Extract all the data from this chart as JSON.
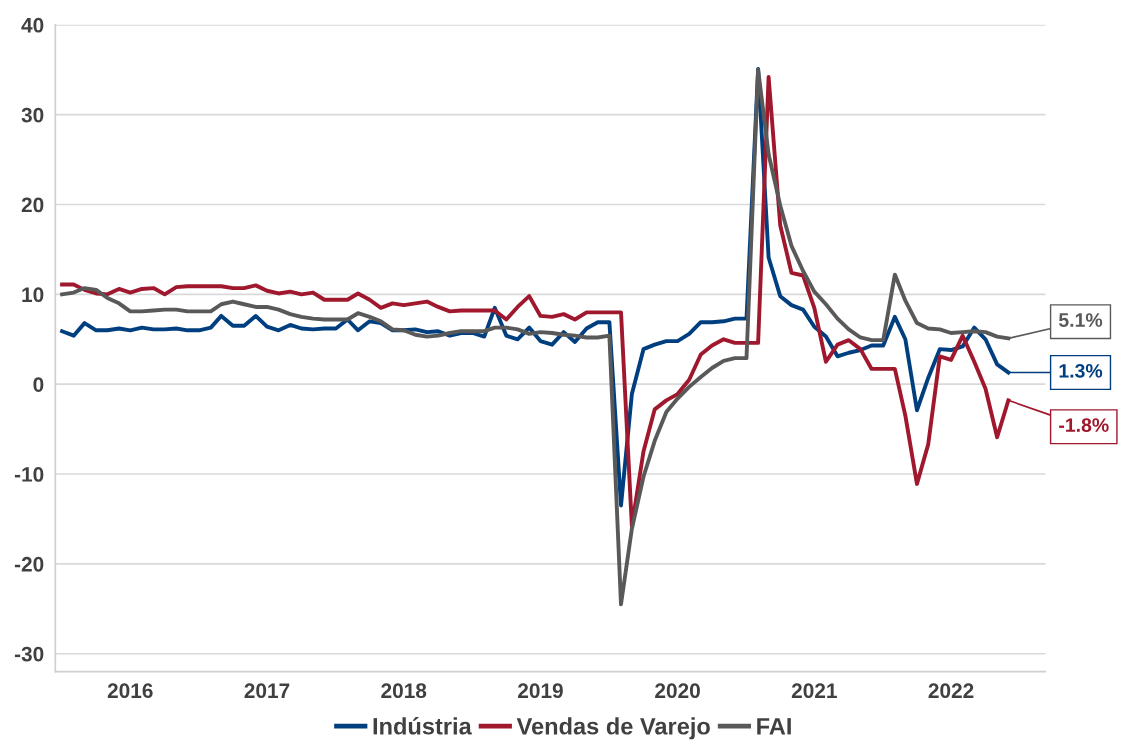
{
  "chart_data": {
    "type": "line",
    "x": [
      "2016-01",
      "2016-02",
      "2016-03",
      "2016-04",
      "2016-05",
      "2016-06",
      "2016-07",
      "2016-08",
      "2016-09",
      "2016-10",
      "2016-11",
      "2016-12",
      "2017-01",
      "2017-02",
      "2017-03",
      "2017-04",
      "2017-05",
      "2017-06",
      "2017-07",
      "2017-08",
      "2017-09",
      "2017-10",
      "2017-11",
      "2017-12",
      "2018-01",
      "2018-02",
      "2018-03",
      "2018-04",
      "2018-05",
      "2018-06",
      "2018-07",
      "2018-08",
      "2018-09",
      "2018-10",
      "2018-11",
      "2018-12",
      "2019-01",
      "2019-02",
      "2019-03",
      "2019-04",
      "2019-05",
      "2019-06",
      "2019-07",
      "2019-08",
      "2019-09",
      "2019-10",
      "2019-11",
      "2019-12",
      "2020-01",
      "2020-02",
      "2020-03",
      "2020-04",
      "2020-05",
      "2020-06",
      "2020-07",
      "2020-08",
      "2020-09",
      "2020-10",
      "2020-11",
      "2020-12",
      "2021-01",
      "2021-02",
      "2021-03",
      "2021-04",
      "2021-05",
      "2021-06",
      "2021-07",
      "2021-08",
      "2021-09",
      "2021-10",
      "2021-11",
      "2021-12",
      "2022-01",
      "2022-02",
      "2022-03",
      "2022-04",
      "2022-05",
      "2022-06",
      "2022-07",
      "2022-08",
      "2022-09",
      "2022-10",
      "2022-11",
      "2022-12"
    ],
    "series": [
      {
        "name": "Indústria",
        "color": "#003f7f",
        "values": [
          5.9,
          5.4,
          6.8,
          6.0,
          6.0,
          6.2,
          6.0,
          6.3,
          6.1,
          6.1,
          6.2,
          6.0,
          6.0,
          6.3,
          7.6,
          6.5,
          6.5,
          7.6,
          6.4,
          6.0,
          6.6,
          6.2,
          6.1,
          6.2,
          6.2,
          7.2,
          6.0,
          7.0,
          6.8,
          6.0,
          6.0,
          6.1,
          5.8,
          5.9,
          5.4,
          5.7,
          5.7,
          5.3,
          8.5,
          5.4,
          5.0,
          6.3,
          4.8,
          4.4,
          5.8,
          4.7,
          6.2,
          6.9,
          6.9,
          -13.5,
          -1.1,
          3.9,
          4.4,
          4.8,
          4.8,
          5.6,
          6.9,
          6.9,
          7.0,
          7.3,
          7.3,
          35.1,
          14.1,
          9.8,
          8.8,
          8.3,
          6.4,
          5.3,
          3.1,
          3.5,
          3.8,
          4.3,
          4.3,
          7.5,
          5.0,
          -2.9,
          0.7,
          3.9,
          3.8,
          4.2,
          6.3,
          5.0,
          2.2,
          1.3
        ]
      },
      {
        "name": "Vendas de Varejo",
        "color": "#a0182d",
        "values": [
          11.1,
          11.1,
          10.5,
          10.1,
          10.0,
          10.6,
          10.2,
          10.6,
          10.7,
          10.0,
          10.8,
          10.9,
          10.9,
          10.9,
          10.9,
          10.7,
          10.7,
          11.0,
          10.4,
          10.1,
          10.3,
          10.0,
          10.2,
          9.4,
          9.4,
          9.4,
          10.1,
          9.4,
          8.5,
          9.0,
          8.8,
          9.0,
          9.2,
          8.6,
          8.1,
          8.2,
          8.2,
          8.2,
          8.2,
          7.2,
          8.6,
          9.8,
          7.6,
          7.5,
          7.8,
          7.2,
          8.0,
          8.0,
          8.0,
          8.0,
          -15.8,
          -7.5,
          -2.8,
          -1.8,
          -1.1,
          0.5,
          3.3,
          4.3,
          5.0,
          4.6,
          4.6,
          4.6,
          34.2,
          17.7,
          12.4,
          12.1,
          8.5,
          2.5,
          4.4,
          4.9,
          3.9,
          1.7,
          1.7,
          1.7,
          -3.5,
          -11.1,
          -6.7,
          3.1,
          2.7,
          5.4,
          2.5,
          -0.5,
          -5.9,
          -1.8
        ]
      },
      {
        "name": "FAI",
        "color": "#595959",
        "values": [
          10.0,
          10.2,
          10.7,
          10.5,
          9.6,
          9.0,
          8.1,
          8.1,
          8.2,
          8.3,
          8.3,
          8.1,
          8.1,
          8.1,
          8.9,
          9.2,
          8.9,
          8.6,
          8.6,
          8.3,
          7.8,
          7.5,
          7.3,
          7.2,
          7.2,
          7.2,
          7.9,
          7.5,
          7.0,
          6.1,
          6.0,
          5.5,
          5.3,
          5.4,
          5.7,
          5.9,
          5.9,
          5.9,
          6.3,
          6.3,
          6.1,
          5.6,
          5.8,
          5.7,
          5.5,
          5.4,
          5.2,
          5.2,
          5.4,
          -24.5,
          -16.1,
          -10.3,
          -6.3,
          -3.1,
          -1.6,
          -0.3,
          0.8,
          1.8,
          2.6,
          2.9,
          2.9,
          35.0,
          25.6,
          19.9,
          15.4,
          12.6,
          10.3,
          8.9,
          7.3,
          6.1,
          5.2,
          4.9,
          4.9,
          12.2,
          9.3,
          6.8,
          6.2,
          6.1,
          5.7,
          5.8,
          5.9,
          5.8,
          5.3,
          5.1
        ]
      }
    ],
    "annotations": [
      {
        "text": "1.3%",
        "x": "2022-12",
        "y": 1.3
      },
      {
        "text": "-1.8%",
        "x": "2022-12",
        "y": -1.8
      },
      {
        "text": "5.1%",
        "x": "2022-12",
        "y": 5.1
      }
    ],
    "xlim": [
      "2015-12-14",
      "2023-03-10"
    ],
    "xticks": [
      {
        "value": "2016-07",
        "label": "2016"
      },
      {
        "value": "2017-07",
        "label": "2017"
      },
      {
        "value": "2018-07",
        "label": "2018"
      },
      {
        "value": "2019-07",
        "label": "2019"
      },
      {
        "value": "2020-07",
        "label": "2020"
      },
      {
        "value": "2021-07",
        "label": "2021"
      },
      {
        "value": "2022-07",
        "label": "2022"
      }
    ],
    "ylim": [
      -32,
      40
    ],
    "yticks": [
      -30,
      -20,
      -10,
      0,
      10,
      20,
      30,
      40
    ],
    "grid": "y",
    "legend": "bottom",
    "marker": "none",
    "line_style": "solid"
  }
}
